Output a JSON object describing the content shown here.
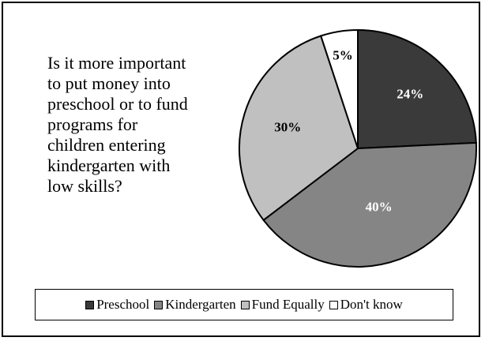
{
  "question": "Is it more important\nto put money into\npreschool or to fund\nprograms for\nchildren entering\nkindergarten with\nlow skills?",
  "chart_data": {
    "type": "pie",
    "categories": [
      "Preschool",
      "Kindergarten",
      "Fund Equally",
      "Don't know"
    ],
    "values": [
      24,
      40,
      30,
      5
    ],
    "value_labels": [
      "24%",
      "40%",
      "30%",
      "5%"
    ],
    "colors": [
      "#3a3a3a",
      "#858585",
      "#c0c0c0",
      "#ffffff"
    ],
    "label_colors": [
      "#ffffff",
      "#ffffff",
      "#000000",
      "#000000"
    ],
    "legend": {
      "position": "bottom"
    }
  }
}
